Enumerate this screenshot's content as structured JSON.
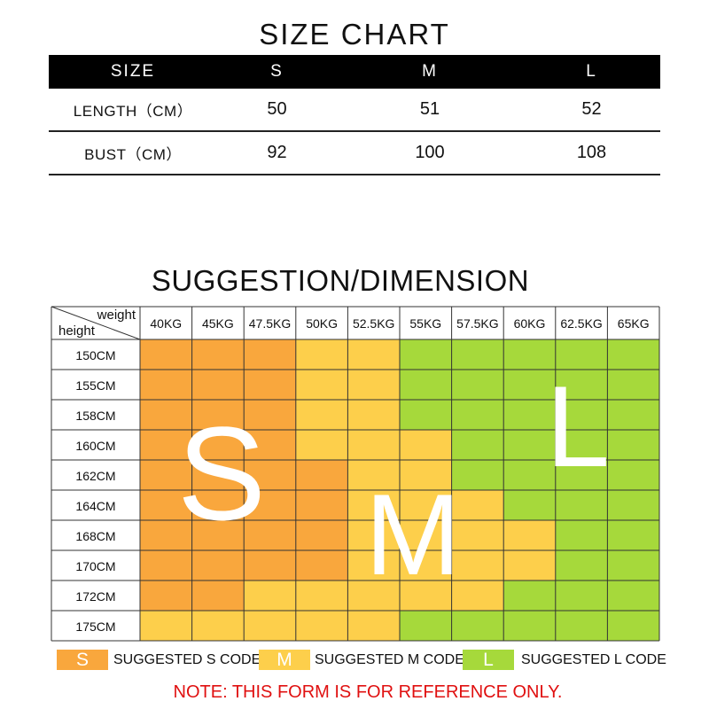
{
  "size_chart": {
    "title": "SIZE CHART",
    "header": [
      "SIZE",
      "S",
      "M",
      "L"
    ],
    "rows": [
      {
        "label": "LENGTH（CM）",
        "values": [
          "50",
          "51",
          "52"
        ]
      },
      {
        "label": "BUST（CM）",
        "values": [
          "92",
          "100",
          "108"
        ]
      }
    ]
  },
  "suggestion": {
    "title": "SUGGESTION/DIMENSION",
    "corner_top": "weight",
    "corner_bottom": "height",
    "weights": [
      "40KG",
      "45KG",
      "47.5KG",
      "50KG",
      "52.5KG",
      "55KG",
      "57.5KG",
      "60KG",
      "62.5KG",
      "65KG"
    ],
    "heights": [
      "150CM",
      "155CM",
      "158CM",
      "160CM",
      "162CM",
      "164CM",
      "168CM",
      "170CM",
      "172CM",
      "175CM"
    ],
    "grid": [
      [
        "S",
        "S",
        "S",
        "M",
        "M",
        "L",
        "L",
        "L",
        "L",
        "L"
      ],
      [
        "S",
        "S",
        "S",
        "M",
        "M",
        "L",
        "L",
        "L",
        "L",
        "L"
      ],
      [
        "S",
        "S",
        "S",
        "M",
        "M",
        "L",
        "L",
        "L",
        "L",
        "L"
      ],
      [
        "S",
        "S",
        "S",
        "M",
        "M",
        "M",
        "L",
        "L",
        "L",
        "L"
      ],
      [
        "S",
        "S",
        "S",
        "S",
        "M",
        "M",
        "L",
        "L",
        "L",
        "L"
      ],
      [
        "S",
        "S",
        "S",
        "S",
        "M",
        "M",
        "M",
        "L",
        "L",
        "L"
      ],
      [
        "S",
        "S",
        "S",
        "S",
        "M",
        "M",
        "M",
        "M",
        "L",
        "L"
      ],
      [
        "S",
        "S",
        "S",
        "S",
        "M",
        "M",
        "M",
        "M",
        "L",
        "L"
      ],
      [
        "S",
        "S",
        "M",
        "M",
        "M",
        "M",
        "M",
        "L",
        "L",
        "L"
      ],
      [
        "M",
        "M",
        "M",
        "M",
        "M",
        "L",
        "L",
        "L",
        "L",
        "L"
      ]
    ],
    "big_letters": [
      "S",
      "M",
      "L"
    ]
  },
  "colors": {
    "S": "#f9a73d",
    "M": "#fdcf4b",
    "L": "#a6d93b"
  },
  "legend": [
    {
      "code": "S",
      "label": "SUGGESTED S CODE"
    },
    {
      "code": "M",
      "label": "SUGGESTED M CODE"
    },
    {
      "code": "L",
      "label": "SUGGESTED L CODE"
    }
  ],
  "note": "NOTE: THIS FORM IS FOR REFERENCE ONLY."
}
